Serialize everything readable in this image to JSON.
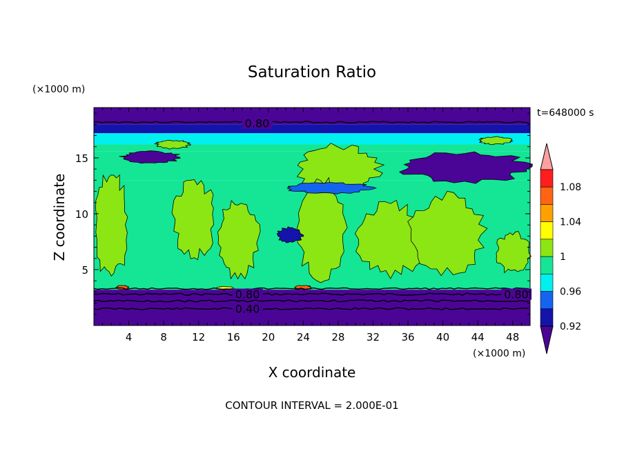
{
  "chart_data": {
    "type": "heatmap",
    "title": "Saturation Ratio",
    "xlabel": "X coordinate",
    "ylabel": "Z coordinate",
    "x_unit": "(×1000 m)",
    "y_unit": "(×1000 m)",
    "time_label": "t=648000 s",
    "footer": "CONTOUR INTERVAL = 2.000E-01",
    "xlim": [
      0,
      50
    ],
    "ylim": [
      0,
      19.5
    ],
    "x_ticks": [
      4,
      8,
      12,
      16,
      20,
      24,
      28,
      32,
      36,
      40,
      44,
      48
    ],
    "y_ticks": [
      5,
      10,
      15
    ],
    "contour_labels": [
      {
        "text": "0.80",
        "x": 17.3,
        "z": 18.1
      },
      {
        "text": "0.80",
        "x": 16.2,
        "z": 2.8
      },
      {
        "text": "0.80",
        "x": 47.0,
        "z": 2.8
      },
      {
        "text": "0.40",
        "x": 16.2,
        "z": 1.5
      }
    ],
    "colorbar": {
      "labels": [
        "1.08",
        "1.04",
        "1",
        "0.96",
        "0.92"
      ],
      "colors": [
        "#4b0596",
        "#1414aa",
        "#1464f0",
        "#00f0f0",
        "#14e696",
        "#8ce614",
        "#ffff00",
        "#ffa000",
        "#ff6414",
        "#ff1e1e",
        "#ffa0a0"
      ]
    },
    "bands": [
      {
        "from": 19.5,
        "to": 18.0,
        "level": 0
      },
      {
        "from": 18.0,
        "to": 17.2,
        "level": 1
      },
      {
        "from": 17.2,
        "to": 16.2,
        "level": 3
      },
      {
        "from": 16.2,
        "to": 15.6,
        "level": 4
      },
      {
        "from": 15.6,
        "to": 13.0,
        "level": 4
      },
      {
        "from": 13.0,
        "to": 3.2,
        "level": 4
      },
      {
        "from": 3.2,
        "to": 0,
        "level": 0
      }
    ],
    "features": [
      {
        "level": 5,
        "x": [
          7,
          11
        ],
        "z": [
          15.8,
          16.6
        ]
      },
      {
        "level": 5,
        "x": [
          23,
          33
        ],
        "z": [
          11.8,
          16.2
        ]
      },
      {
        "level": 5,
        "x": [
          44,
          48
        ],
        "z": [
          16.2,
          16.9
        ]
      },
      {
        "level": 0,
        "x": [
          3,
          10
        ],
        "z": [
          14.5,
          15.6
        ]
      },
      {
        "level": 0,
        "x": [
          35,
          50
        ],
        "z": [
          12.8,
          15.6
        ]
      },
      {
        "level": 5,
        "x": [
          0,
          4
        ],
        "z": [
          4.2,
          13.8
        ]
      },
      {
        "level": 5,
        "x": [
          9,
          14
        ],
        "z": [
          6.0,
          13.0
        ]
      },
      {
        "level": 5,
        "x": [
          14,
          19
        ],
        "z": [
          4.2,
          11.5
        ]
      },
      {
        "level": 5,
        "x": [
          23,
          29
        ],
        "z": [
          4.0,
          13.5
        ]
      },
      {
        "level": 5,
        "x": [
          30,
          38
        ],
        "z": [
          4.4,
          11.0
        ]
      },
      {
        "level": 5,
        "x": [
          36,
          45
        ],
        "z": [
          4.4,
          11.8
        ]
      },
      {
        "level": 5,
        "x": [
          46,
          50
        ],
        "z": [
          4.6,
          8.4
        ]
      },
      {
        "level": 1,
        "x": [
          21,
          24
        ],
        "z": [
          7.4,
          8.8
        ]
      },
      {
        "level": 2,
        "x": [
          22,
          32
        ],
        "z": [
          11.8,
          12.8
        ]
      },
      {
        "level": 8,
        "x": [
          2.5,
          4
        ],
        "z": [
          3.2,
          3.6
        ]
      },
      {
        "level": 8,
        "x": [
          23,
          25
        ],
        "z": [
          3.2,
          3.6
        ]
      },
      {
        "level": 6,
        "x": [
          14,
          16
        ],
        "z": [
          3.2,
          3.5
        ]
      }
    ]
  }
}
